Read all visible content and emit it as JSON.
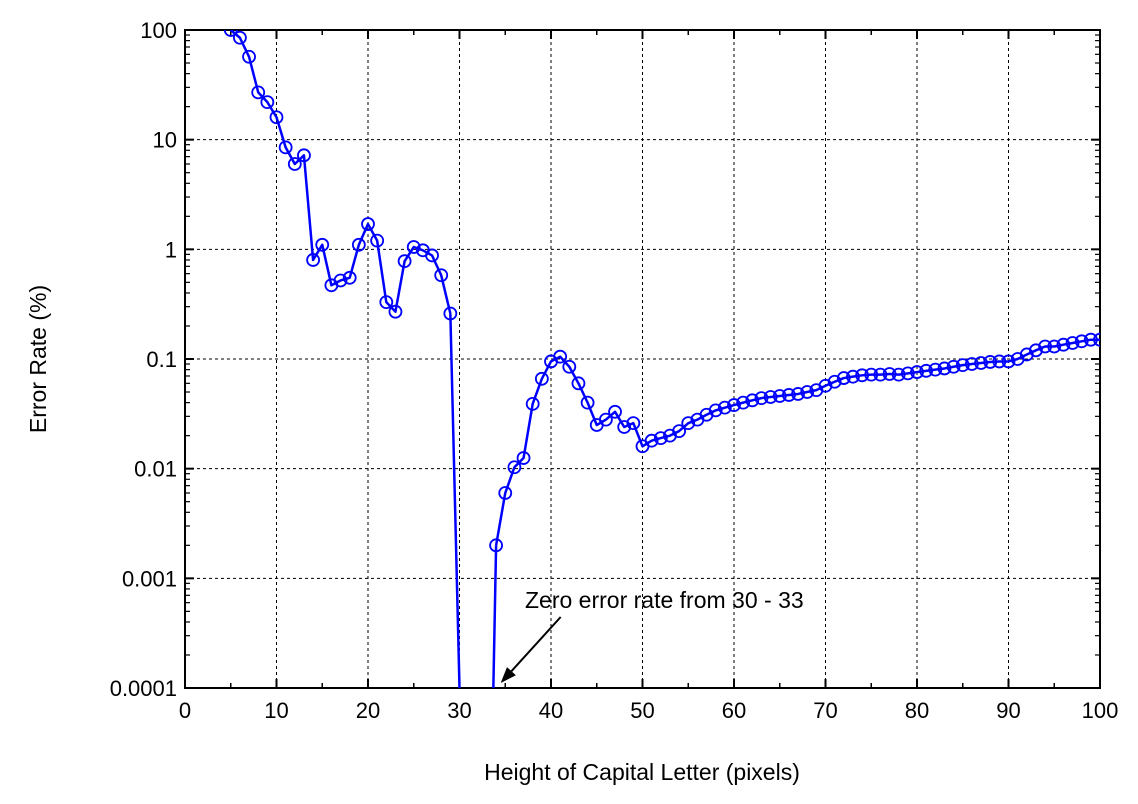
{
  "chart_data": {
    "type": "line",
    "title": "",
    "xlabel": "Height of Capital Letter (pixels)",
    "ylabel": "Error Rate (%)",
    "xlim": [
      0,
      100
    ],
    "ylim": [
      0.0001,
      100
    ],
    "yscale": "log",
    "grid": true,
    "x_ticks": [
      "0",
      "10",
      "20",
      "30",
      "40",
      "50",
      "60",
      "70",
      "80",
      "90",
      "100"
    ],
    "y_ticks": [
      "0.0001",
      "0.001",
      "0.01",
      "0.1",
      "1",
      "10",
      "100"
    ],
    "series": [
      {
        "color": "#0000ff",
        "marker": "open-circle",
        "x": [
          5,
          6,
          7,
          8,
          9,
          10,
          11,
          12,
          13,
          14,
          15,
          16,
          17,
          18,
          19,
          20,
          21,
          22,
          23,
          24,
          25,
          26,
          27,
          28,
          29,
          34,
          35,
          36,
          37,
          38,
          39,
          40,
          41,
          42,
          43,
          44,
          45,
          46,
          47,
          48,
          49,
          50,
          51,
          52,
          53,
          54,
          55,
          56,
          57,
          58,
          59,
          60,
          61,
          62,
          63,
          64,
          65,
          66,
          67,
          68,
          69,
          70,
          71,
          72,
          73,
          74,
          75,
          76,
          77,
          78,
          79,
          80,
          81,
          82,
          83,
          84,
          85,
          86,
          87,
          88,
          89,
          90,
          91,
          92,
          93,
          94,
          95,
          96,
          97,
          98,
          99,
          100
        ],
        "y": [
          100,
          85,
          57,
          27,
          22,
          16,
          8.5,
          6,
          7.2,
          0.8,
          1.1,
          0.47,
          0.52,
          0.55,
          1.1,
          1.7,
          1.2,
          0.33,
          0.27,
          0.78,
          1.05,
          0.98,
          0.88,
          0.58,
          0.26,
          0.002,
          0.006,
          0.0103,
          0.0125,
          0.039,
          0.066,
          0.095,
          0.105,
          0.085,
          0.06,
          0.04,
          0.025,
          0.028,
          0.033,
          0.024,
          0.026,
          0.016,
          0.018,
          0.019,
          0.02,
          0.022,
          0.026,
          0.028,
          0.031,
          0.034,
          0.036,
          0.038,
          0.04,
          0.042,
          0.044,
          0.045,
          0.046,
          0.047,
          0.048,
          0.05,
          0.052,
          0.057,
          0.062,
          0.067,
          0.069,
          0.071,
          0.072,
          0.072,
          0.073,
          0.072,
          0.074,
          0.076,
          0.078,
          0.08,
          0.082,
          0.085,
          0.088,
          0.09,
          0.092,
          0.094,
          0.095,
          0.095,
          0.1,
          0.11,
          0.12,
          0.13,
          0.13,
          0.135,
          0.14,
          0.145,
          0.15,
          0.15
        ]
      }
    ],
    "drop_segments": [
      {
        "from": [
          29,
          0.26
        ],
        "to": [
          30,
          0.0001
        ]
      },
      {
        "from": [
          33.7,
          0.0001
        ],
        "to": [
          34,
          0.002
        ]
      }
    ],
    "annotation": {
      "text": "Zero error rate from 30 - 33",
      "arrow_tip": [
        34.5,
        0.0001
      ]
    }
  }
}
